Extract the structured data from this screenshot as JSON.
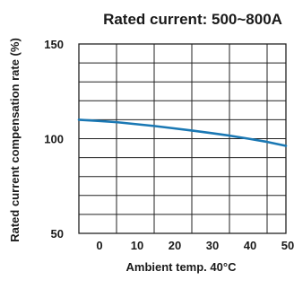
{
  "chart_data": {
    "type": "line",
    "title": "Rated current: 500~800A",
    "xlabel": "Ambient temp. 40°C",
    "ylabel": "Rated current compensation rate (%)",
    "xlim": [
      -5,
      50
    ],
    "ylim": [
      50,
      150
    ],
    "x_ticks": [
      0,
      10,
      20,
      30,
      40,
      50
    ],
    "y_ticks": [
      50,
      100,
      150
    ],
    "x_grid": [
      -5,
      5,
      15,
      25,
      35,
      45
    ],
    "y_grid": [
      60,
      70,
      80,
      90,
      100,
      110,
      120,
      130,
      140
    ],
    "grid": true,
    "line_color": "#1a78b4",
    "series": [
      {
        "x": [
          -5,
          0,
          5,
          10,
          15,
          20,
          25,
          30,
          35,
          40,
          45,
          50
        ],
        "y": [
          110,
          109.4,
          108.7,
          107.7,
          106.7,
          105.5,
          104.3,
          103,
          101.6,
          100,
          98.3,
          96.2
        ]
      }
    ]
  }
}
